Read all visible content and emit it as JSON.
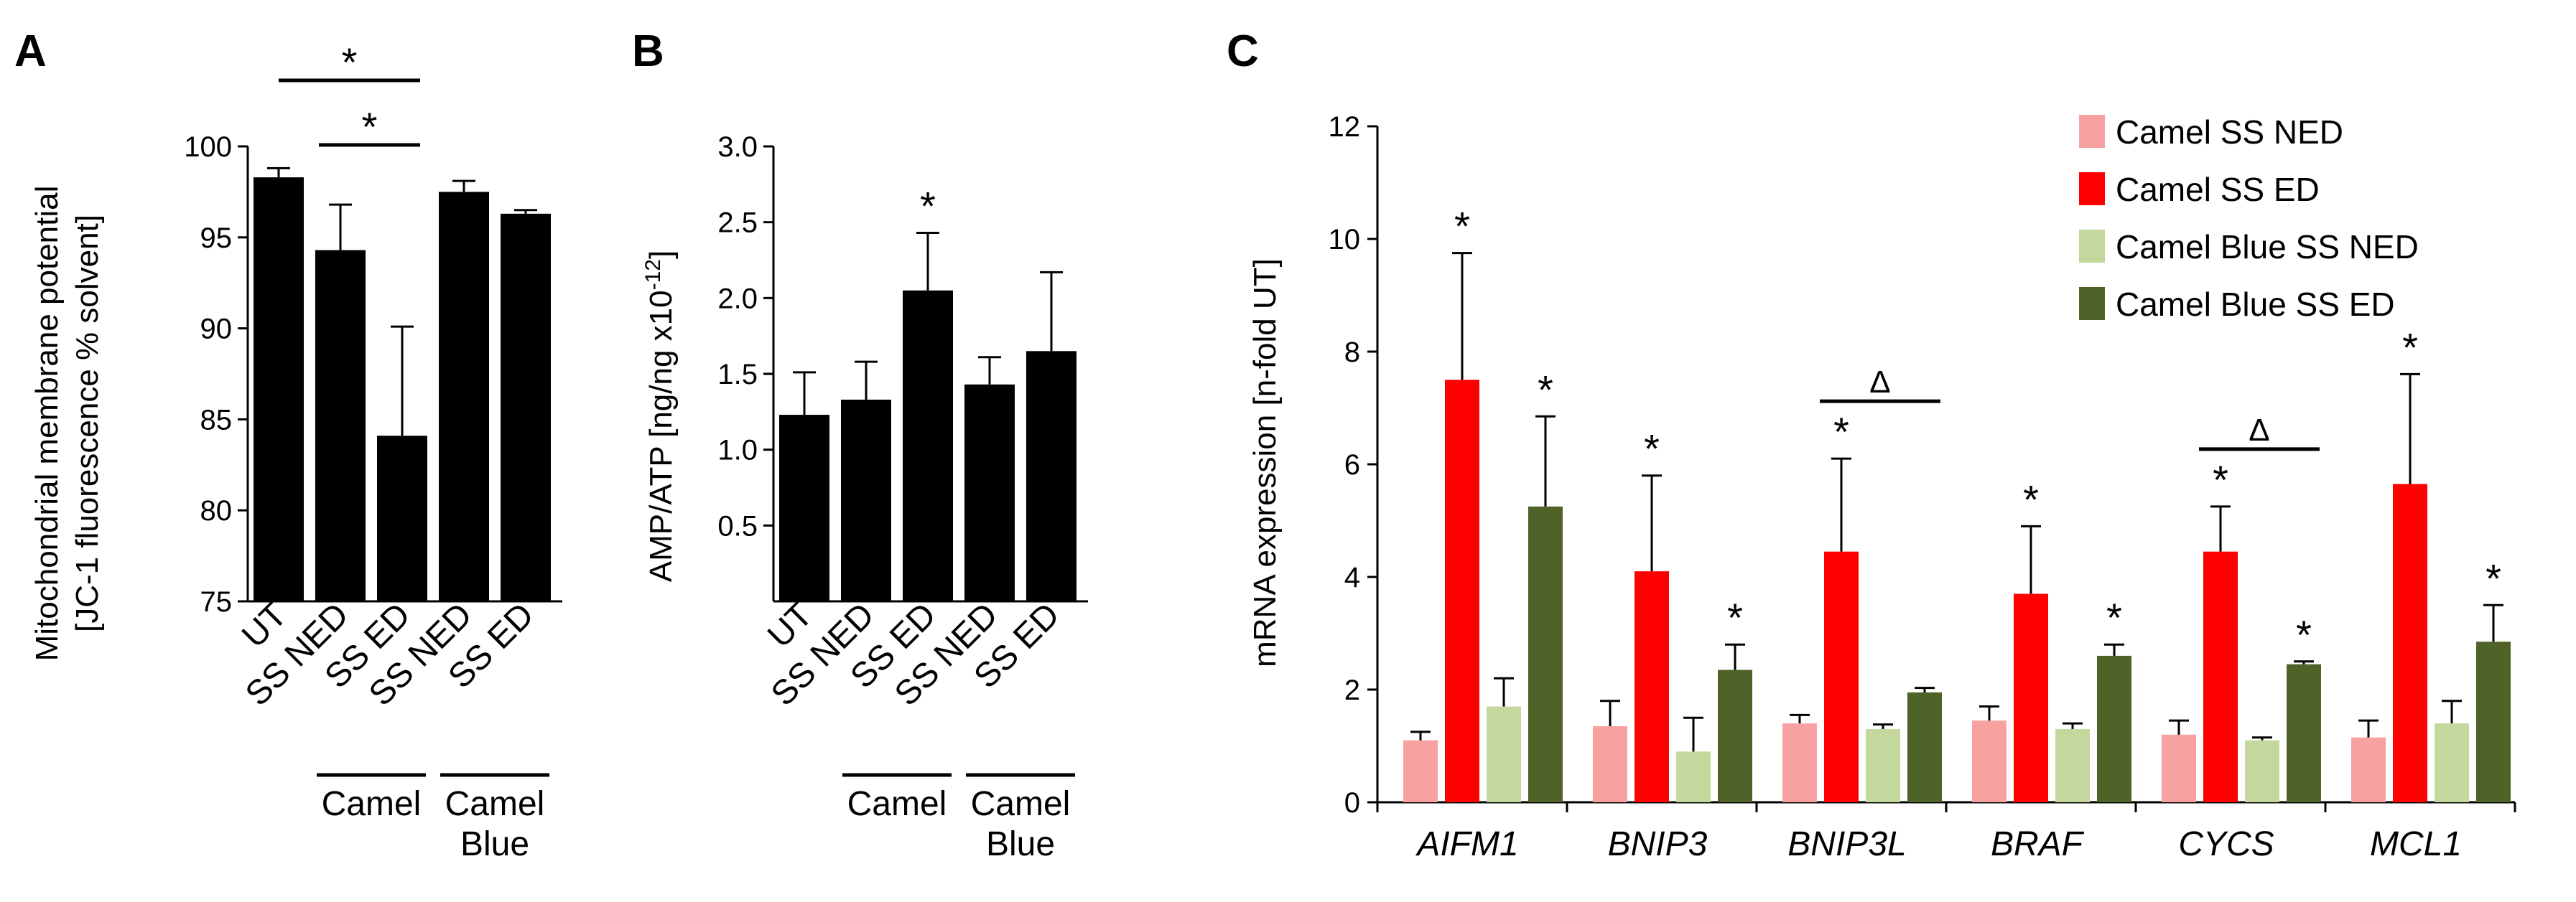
{
  "chart_data": [
    {
      "id": "A",
      "type": "bar",
      "panel_label": "A",
      "ylabel_line1": "Mitochondrial membrane potential",
      "ylabel_line2": "[JC-1 fluorescence % solvent]",
      "ylim": [
        75,
        100
      ],
      "yticks": [
        75,
        80,
        85,
        90,
        95,
        100
      ],
      "categories": [
        "UT",
        "SS NED",
        "SS ED",
        "SS NED",
        "SS ED"
      ],
      "values": [
        98.3,
        94.3,
        84.1,
        97.5,
        96.3
      ],
      "errors": [
        0.5,
        2.5,
        6.0,
        0.6,
        0.2
      ],
      "color": "#000000",
      "groups": [
        {
          "label_lines": [
            "Camel"
          ],
          "categories": [
            1,
            2
          ]
        },
        {
          "label_lines": [
            "Camel",
            "Blue"
          ],
          "categories": [
            3,
            4
          ]
        }
      ],
      "significance": [
        {
          "from": 0,
          "to": 2,
          "label": "*"
        },
        {
          "from": 1,
          "to": 2,
          "label": "*"
        }
      ]
    },
    {
      "id": "B",
      "type": "bar",
      "panel_label": "B",
      "ylabel_main": "AMP/ATP  [ng/ng x10",
      "ylabel_sup": "-12",
      "ylabel_end": "]",
      "ylim": [
        0,
        3.0
      ],
      "yticks": [
        "0.5",
        "1.0",
        "1.5",
        "2.0",
        "2.5",
        "3.0"
      ],
      "categories": [
        "UT",
        "SS NED",
        "SS ED",
        "SS NED",
        "SS ED"
      ],
      "values": [
        1.23,
        1.33,
        2.05,
        1.43,
        1.65
      ],
      "errors": [
        0.28,
        0.25,
        0.38,
        0.18,
        0.52
      ],
      "color": "#000000",
      "groups": [
        {
          "label_lines": [
            "Camel"
          ],
          "categories": [
            1,
            2
          ]
        },
        {
          "label_lines": [
            "Camel",
            "Blue"
          ],
          "categories": [
            3,
            4
          ]
        }
      ],
      "stars": [
        {
          "category": 2,
          "label": "*"
        }
      ]
    },
    {
      "id": "C",
      "type": "bar",
      "panel_label": "C",
      "ylabel": "mRNA expression [n-fold UT]",
      "ylim": [
        0,
        12
      ],
      "yticks": [
        0,
        2,
        4,
        6,
        8,
        10,
        12
      ],
      "categories": [
        "AIFM1",
        "BNIP3",
        "BNIP3L",
        "BRAF",
        "CYCS",
        "MCL1"
      ],
      "series": [
        {
          "name": "Camel SS NED",
          "color": "#F7A1A1",
          "values": [
            1.1,
            1.35,
            1.4,
            1.45,
            1.2,
            1.15
          ],
          "errors": [
            0.15,
            0.45,
            0.15,
            0.25,
            0.25,
            0.3
          ]
        },
        {
          "name": "Camel SS ED",
          "color": "#FF0000",
          "values": [
            7.5,
            4.1,
            4.45,
            3.7,
            4.45,
            5.65
          ],
          "errors": [
            2.25,
            1.7,
            1.65,
            1.2,
            0.8,
            1.95
          ]
        },
        {
          "name": "Camel Blue SS NED",
          "color": "#C4D89E",
          "values": [
            1.7,
            0.9,
            1.3,
            1.3,
            1.1,
            1.4
          ],
          "errors": [
            0.5,
            0.6,
            0.08,
            0.1,
            0.05,
            0.4
          ]
        },
        {
          "name": "Camel Blue SS ED",
          "color": "#4F6228",
          "values": [
            5.25,
            2.35,
            1.95,
            2.6,
            2.45,
            2.85
          ],
          "errors": [
            1.6,
            0.45,
            0.08,
            0.2,
            0.05,
            0.65
          ]
        }
      ],
      "stars": [
        {
          "category": 0,
          "series": 1,
          "label": "*"
        },
        {
          "category": 0,
          "series": 3,
          "label": "*"
        },
        {
          "category": 1,
          "series": 1,
          "label": "*"
        },
        {
          "category": 1,
          "series": 3,
          "label": "*"
        },
        {
          "category": 2,
          "series": 1,
          "label": "*"
        },
        {
          "category": 3,
          "series": 1,
          "label": "*"
        },
        {
          "category": 3,
          "series": 3,
          "label": "*"
        },
        {
          "category": 4,
          "series": 1,
          "label": "*"
        },
        {
          "category": 4,
          "series": 3,
          "label": "*"
        },
        {
          "category": 5,
          "series": 1,
          "label": "*"
        },
        {
          "category": 5,
          "series": 3,
          "label": "*"
        }
      ],
      "deltas": [
        {
          "category": 2,
          "from_series": 1,
          "to_series": 3,
          "label": "Δ"
        },
        {
          "category": 4,
          "from_series": 1,
          "to_series": 3,
          "label": "Δ"
        }
      ]
    }
  ]
}
